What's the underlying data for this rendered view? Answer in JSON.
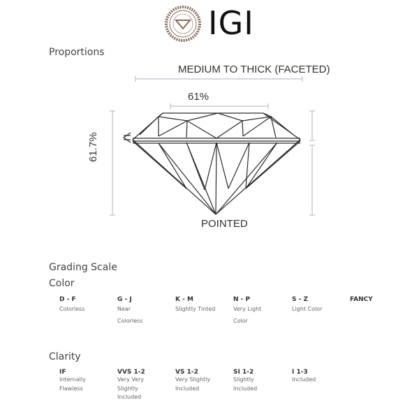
{
  "logo": {
    "text": "IGI",
    "seal_text": "IGI",
    "seal_color": "#8a6a5a"
  },
  "proportions": {
    "title": "Proportions",
    "girdle": "MEDIUM TO THICK (FACETED)",
    "table": "61%",
    "depth": "61.7%",
    "culet": "POINTED"
  },
  "grading": {
    "title": "Grading Scale",
    "color_title": "Color",
    "color": [
      {
        "code": "D - F",
        "desc": [
          "Colorless"
        ]
      },
      {
        "code": "G - J",
        "desc": [
          "Near",
          "Colorless"
        ]
      },
      {
        "code": "K - M",
        "desc": [
          "Slightly Tinted"
        ]
      },
      {
        "code": "N - P",
        "desc": [
          "Very Light",
          "Color"
        ]
      },
      {
        "code": "S - Z",
        "desc": [
          "Light Color"
        ]
      },
      {
        "code": "FANCY",
        "desc": []
      }
    ],
    "clarity_title": "Clarity",
    "clarity": [
      {
        "code": "IF",
        "desc": [
          "Internally",
          "Flawless"
        ]
      },
      {
        "code": "VVS 1-2",
        "desc": [
          "Very Very",
          "Slightly",
          "Included"
        ]
      },
      {
        "code": "VS 1-2",
        "desc": [
          "Very Slightly",
          "Included"
        ]
      },
      {
        "code": "SI 1-2",
        "desc": [
          "Slightly",
          "Included"
        ]
      },
      {
        "code": "I 1-3",
        "desc": [
          "Included"
        ]
      }
    ]
  }
}
